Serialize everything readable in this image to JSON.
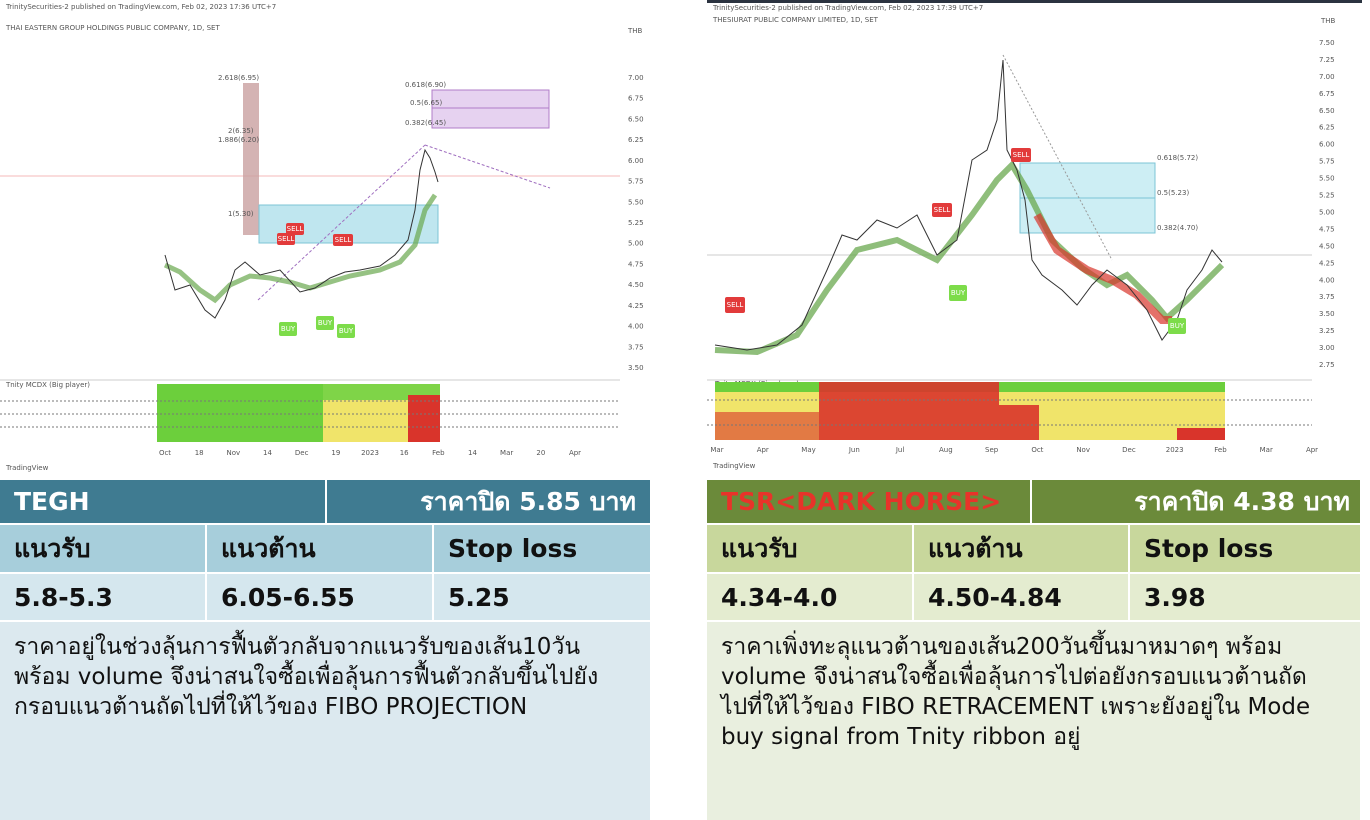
{
  "panels": [
    {
      "chart": {
        "source": "TrinitySecurities-2 published on TradingView.com, Feb 02, 2023 17:36 UTC+7",
        "instrument": "THAI EASTERN GROUP HOLDINGS PUBLIC COMPANY, 1D, SET",
        "currency": "THB",
        "indicator": "Tnity MCDX (Big player)",
        "brand": "TradingView",
        "y_labels": [
          "7.00",
          "6.75",
          "6.50",
          "6.25",
          "6.00",
          "5.75",
          "5.50",
          "5.25",
          "5.00",
          "4.75",
          "4.50",
          "4.25",
          "4.00",
          "3.75",
          "3.50"
        ],
        "x_labels": [
          "Oct",
          "18",
          "Nov",
          "14",
          "Dec",
          "19",
          "2023",
          "16",
          "Feb",
          "14",
          "Mar",
          "20",
          "Apr"
        ],
        "fibo": [
          "2.618(6.95)",
          "2(6.35)",
          "1.886(6.20)",
          "1(5.30)",
          "0.618(6.90)",
          "0.5(6.65)",
          "0.382(6.45)"
        ],
        "signals": [
          "SELL",
          "SELL",
          "SELL",
          "BUY",
          "BUY",
          "BUY"
        ]
      },
      "table": {
        "symbol": "TEGH",
        "close": "ราคาปิด 5.85 บาท",
        "headers": [
          "แนวรับ",
          "แนวต้าน",
          "Stop loss"
        ],
        "row": [
          "5.8-5.3",
          "6.05-6.55",
          "5.25"
        ]
      },
      "note": "ราคาอยู่ในช่วงลุ้นการฟื้นตัวกลับจากแนวรับของเส้น10วันพร้อม volume จึงน่าสนใจซื้อเพื่อลุ้นการฟื้นตัวกลับขึ้นไปยังกรอบแนวต้านถัดไปที่ให้ไว้ของ FIBO PROJECTION"
    },
    {
      "chart": {
        "source": "TrinitySecurities-2 published on TradingView.com, Feb 02, 2023 17:39 UTC+7",
        "instrument": "THESIURAT PUBLIC COMPANY LIMITED, 1D, SET",
        "currency": "THB",
        "indicator": "Tnity MCDX (Big player)",
        "brand": "TradingView",
        "y_labels": [
          "7.50",
          "7.25",
          "7.00",
          "6.75",
          "6.50",
          "6.25",
          "6.00",
          "5.75",
          "5.50",
          "5.25",
          "5.00",
          "4.75",
          "4.50",
          "4.25",
          "4.00",
          "3.75",
          "3.50",
          "3.25",
          "3.00",
          "2.75"
        ],
        "x_labels": [
          "Mar",
          "Apr",
          "May",
          "Jun",
          "Jul",
          "Aug",
          "Sep",
          "Oct",
          "Nov",
          "Dec",
          "2023",
          "Feb",
          "Mar",
          "Apr"
        ],
        "fibo": [
          "0.618(5.72)",
          "0.5(5.23)",
          "0.382(4.70)"
        ],
        "signals": [
          "SELL",
          "SELL",
          "SELL",
          "BUY",
          "BUY"
        ]
      },
      "table": {
        "symbol": "TSR<DARK HORSE>",
        "close": "ราคาปิด 4.38 บาท",
        "headers": [
          "แนวรับ",
          "แนวต้าน",
          "Stop loss"
        ],
        "row": [
          "4.34-4.0",
          "4.50-4.84",
          "3.98"
        ]
      },
      "note": "ราคาเพิ่งทะลุแนวต้านของเส้น200วันขึ้นมาหมาดๆ พร้อม volume จึงน่าสนใจซื้อเพื่อลุ้นการไปต่อยังกรอบแนวต้านถัดไปที่ให้ไว้ของ FIBO RETRACEMENT เพราะยังอยู่ใน Mode buy signal from Tnity ribbon อยู่"
    }
  ]
}
